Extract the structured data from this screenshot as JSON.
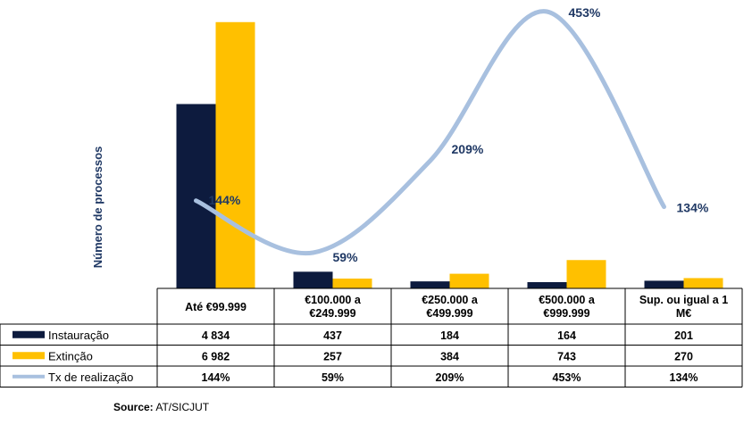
{
  "chart_data": {
    "type": "bar",
    "ylabel": "Número de processos",
    "categories": [
      [
        "Até €99.999"
      ],
      [
        "€100.000 a",
        "€249.999"
      ],
      [
        "€250.000 a",
        "€499.999"
      ],
      [
        "€500.000 a",
        "€999.999"
      ],
      [
        "Sup. ou igual a 1",
        "M€"
      ]
    ],
    "series": [
      {
        "name": "Instauração",
        "color": "#0d1b3e",
        "values": [
          4834,
          437,
          184,
          164,
          201
        ],
        "labels": [
          "4 834",
          "437",
          "184",
          "164",
          "201"
        ]
      },
      {
        "name": "Extinção",
        "color": "#ffc000",
        "values": [
          6982,
          257,
          384,
          743,
          270
        ],
        "labels": [
          "6 982",
          "257",
          "384",
          "743",
          "270"
        ]
      }
    ],
    "line": {
      "name": "Tx de realização",
      "color": "#a8c0df",
      "values": [
        144,
        59,
        209,
        453,
        134
      ],
      "labels": [
        "144%",
        "59%",
        "209%",
        "453%",
        "134%"
      ]
    },
    "grid": false,
    "legend": "table-left"
  },
  "source": {
    "label": "Source:",
    "text": "AT/SICJUT"
  }
}
